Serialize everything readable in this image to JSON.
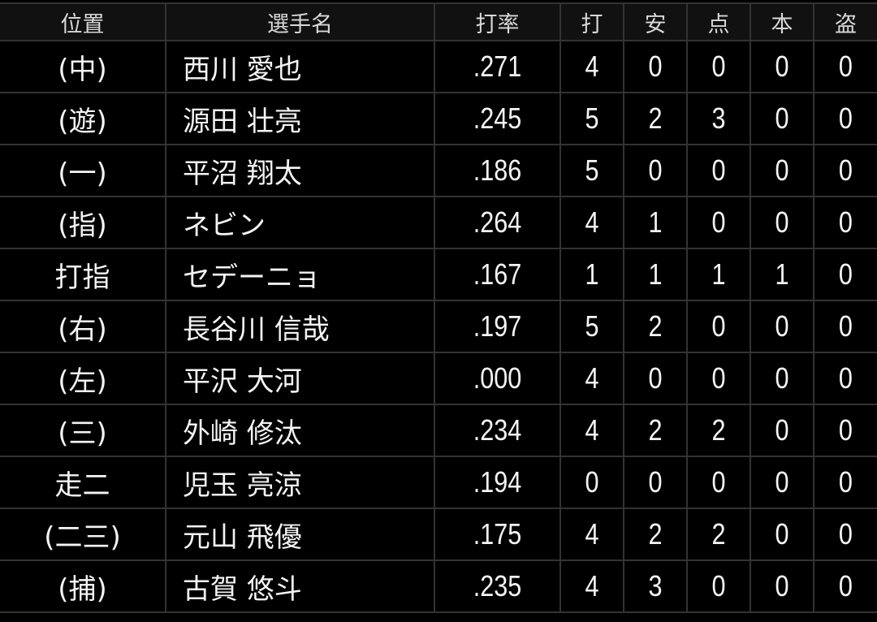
{
  "headers": [
    "位置",
    "選手名",
    "打率",
    "打",
    "安",
    "点",
    "本",
    "盗"
  ],
  "rows": [
    {
      "pos": "(中)",
      "name": "西川 愛也",
      "avg": ".271",
      "ab": "4",
      "h": "0",
      "rbi": "0",
      "hr": "0",
      "sb": "0"
    },
    {
      "pos": "(遊)",
      "name": "源田 壮亮",
      "avg": ".245",
      "ab": "5",
      "h": "2",
      "rbi": "3",
      "hr": "0",
      "sb": "0"
    },
    {
      "pos": "(一)",
      "name": "平沼 翔太",
      "avg": ".186",
      "ab": "5",
      "h": "0",
      "rbi": "0",
      "hr": "0",
      "sb": "0"
    },
    {
      "pos": "(指)",
      "name": "ネビン",
      "avg": ".264",
      "ab": "4",
      "h": "1",
      "rbi": "0",
      "hr": "0",
      "sb": "0"
    },
    {
      "pos": "打指",
      "name": "セデーニョ",
      "avg": ".167",
      "ab": "1",
      "h": "1",
      "rbi": "1",
      "hr": "1",
      "sb": "0"
    },
    {
      "pos": "(右)",
      "name": "長谷川 信哉",
      "avg": ".197",
      "ab": "5",
      "h": "2",
      "rbi": "0",
      "hr": "0",
      "sb": "0"
    },
    {
      "pos": "(左)",
      "name": "平沢 大河",
      "avg": ".000",
      "ab": "4",
      "h": "0",
      "rbi": "0",
      "hr": "0",
      "sb": "0"
    },
    {
      "pos": "(三)",
      "name": "外崎 修汰",
      "avg": ".234",
      "ab": "4",
      "h": "2",
      "rbi": "2",
      "hr": "0",
      "sb": "0"
    },
    {
      "pos": "走二",
      "name": "児玉 亮涼",
      "avg": ".194",
      "ab": "0",
      "h": "0",
      "rbi": "0",
      "hr": "0",
      "sb": "0"
    },
    {
      "pos": "(二三)",
      "name": "元山 飛優",
      "avg": ".175",
      "ab": "4",
      "h": "2",
      "rbi": "2",
      "hr": "0",
      "sb": "0"
    },
    {
      "pos": "(捕)",
      "name": "古賀 悠斗",
      "avg": ".235",
      "ab": "4",
      "h": "3",
      "rbi": "0",
      "hr": "0",
      "sb": "0"
    }
  ]
}
